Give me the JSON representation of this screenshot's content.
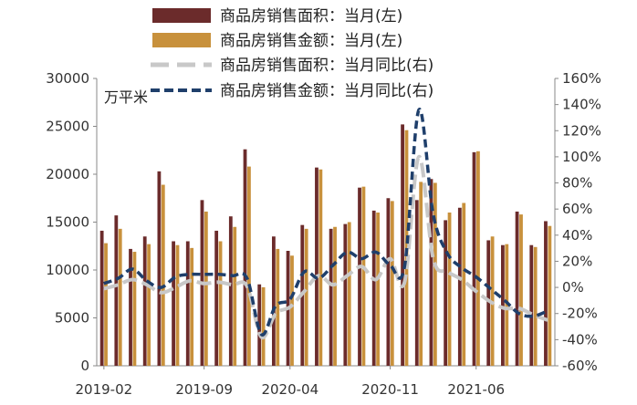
{
  "chart_data": {
    "type": "bar",
    "title": "",
    "unit_label": "万平米",
    "categories": [
      "2019-02",
      "2019-03",
      "2019-04",
      "2019-05",
      "2019-06",
      "2019-07",
      "2019-08",
      "2019-09",
      "2019-10",
      "2019-11",
      "2019-12",
      "2020-02",
      "2020-03",
      "2020-04",
      "2020-05",
      "2020-06",
      "2020-07",
      "2020-08",
      "2020-09",
      "2020-10",
      "2020-11",
      "2020-12",
      "2021-02",
      "2021-03",
      "2021-04",
      "2021-05",
      "2021-06",
      "2021-07",
      "2021-08",
      "2021-09",
      "2021-10",
      "2021-11"
    ],
    "x_tick_labels": [
      "2019-02",
      "2019-09",
      "2020-04",
      "2020-11",
      "2021-06"
    ],
    "y_left": {
      "min": 0,
      "max": 30000,
      "ticks": [
        "0",
        "5000",
        "10000",
        "15000",
        "20000",
        "25000",
        "30000"
      ]
    },
    "y_right": {
      "min": -60,
      "max": 160,
      "ticks": [
        "-60%",
        "-40%",
        "-20%",
        "0%",
        "20%",
        "40%",
        "60%",
        "80%",
        "100%",
        "120%",
        "140%",
        "160%"
      ]
    },
    "series": [
      {
        "name": "商品房销售面积：当月(左)",
        "kind": "bar",
        "axis": "left",
        "color": "#6b2b2b",
        "values": [
          14100,
          15700,
          12200,
          13500,
          20300,
          13000,
          13000,
          17300,
          14100,
          15600,
          22600,
          8500,
          13500,
          12000,
          14700,
          20700,
          14300,
          14800,
          18600,
          16200,
          17500,
          25200,
          17300,
          19500,
          15200,
          16500,
          22300,
          13100,
          12600,
          16100,
          12600,
          15100
        ]
      },
      {
        "name": "商品房销售金额：当月(左)",
        "kind": "bar",
        "axis": "left",
        "color": "#c8913c",
        "values": [
          12800,
          14300,
          11900,
          12700,
          18900,
          12600,
          12300,
          16100,
          13000,
          14500,
          20800,
          8200,
          12200,
          11500,
          14300,
          20500,
          14500,
          15000,
          18700,
          16000,
          17200,
          24600,
          19200,
          19100,
          16000,
          17000,
          22400,
          13500,
          12700,
          15800,
          12400,
          14600
        ]
      },
      {
        "name": "商品房销售面积：当月同比(右)",
        "kind": "line",
        "axis": "right",
        "color": "#c8c8c8",
        "values": [
          -1,
          2,
          6,
          2,
          -4,
          0,
          5,
          3,
          4,
          2,
          1,
          -38,
          -20,
          -15,
          -3,
          9,
          2,
          9,
          16,
          6,
          22,
          4,
          100,
          22,
          12,
          6,
          -3,
          -11,
          -16,
          -16,
          -21,
          -25
        ]
      },
      {
        "name": "商品房销售金额：当月同比(右)",
        "kind": "line",
        "axis": "right",
        "color": "#1f3f6b",
        "values": [
          3,
          7,
          14,
          5,
          0,
          8,
          10,
          10,
          10,
          9,
          7,
          -36,
          -14,
          -9,
          12,
          7,
          17,
          27,
          22,
          27,
          17,
          16,
          136,
          56,
          26,
          15,
          8,
          -1,
          -10,
          -20,
          -22,
          -18
        ]
      }
    ]
  }
}
